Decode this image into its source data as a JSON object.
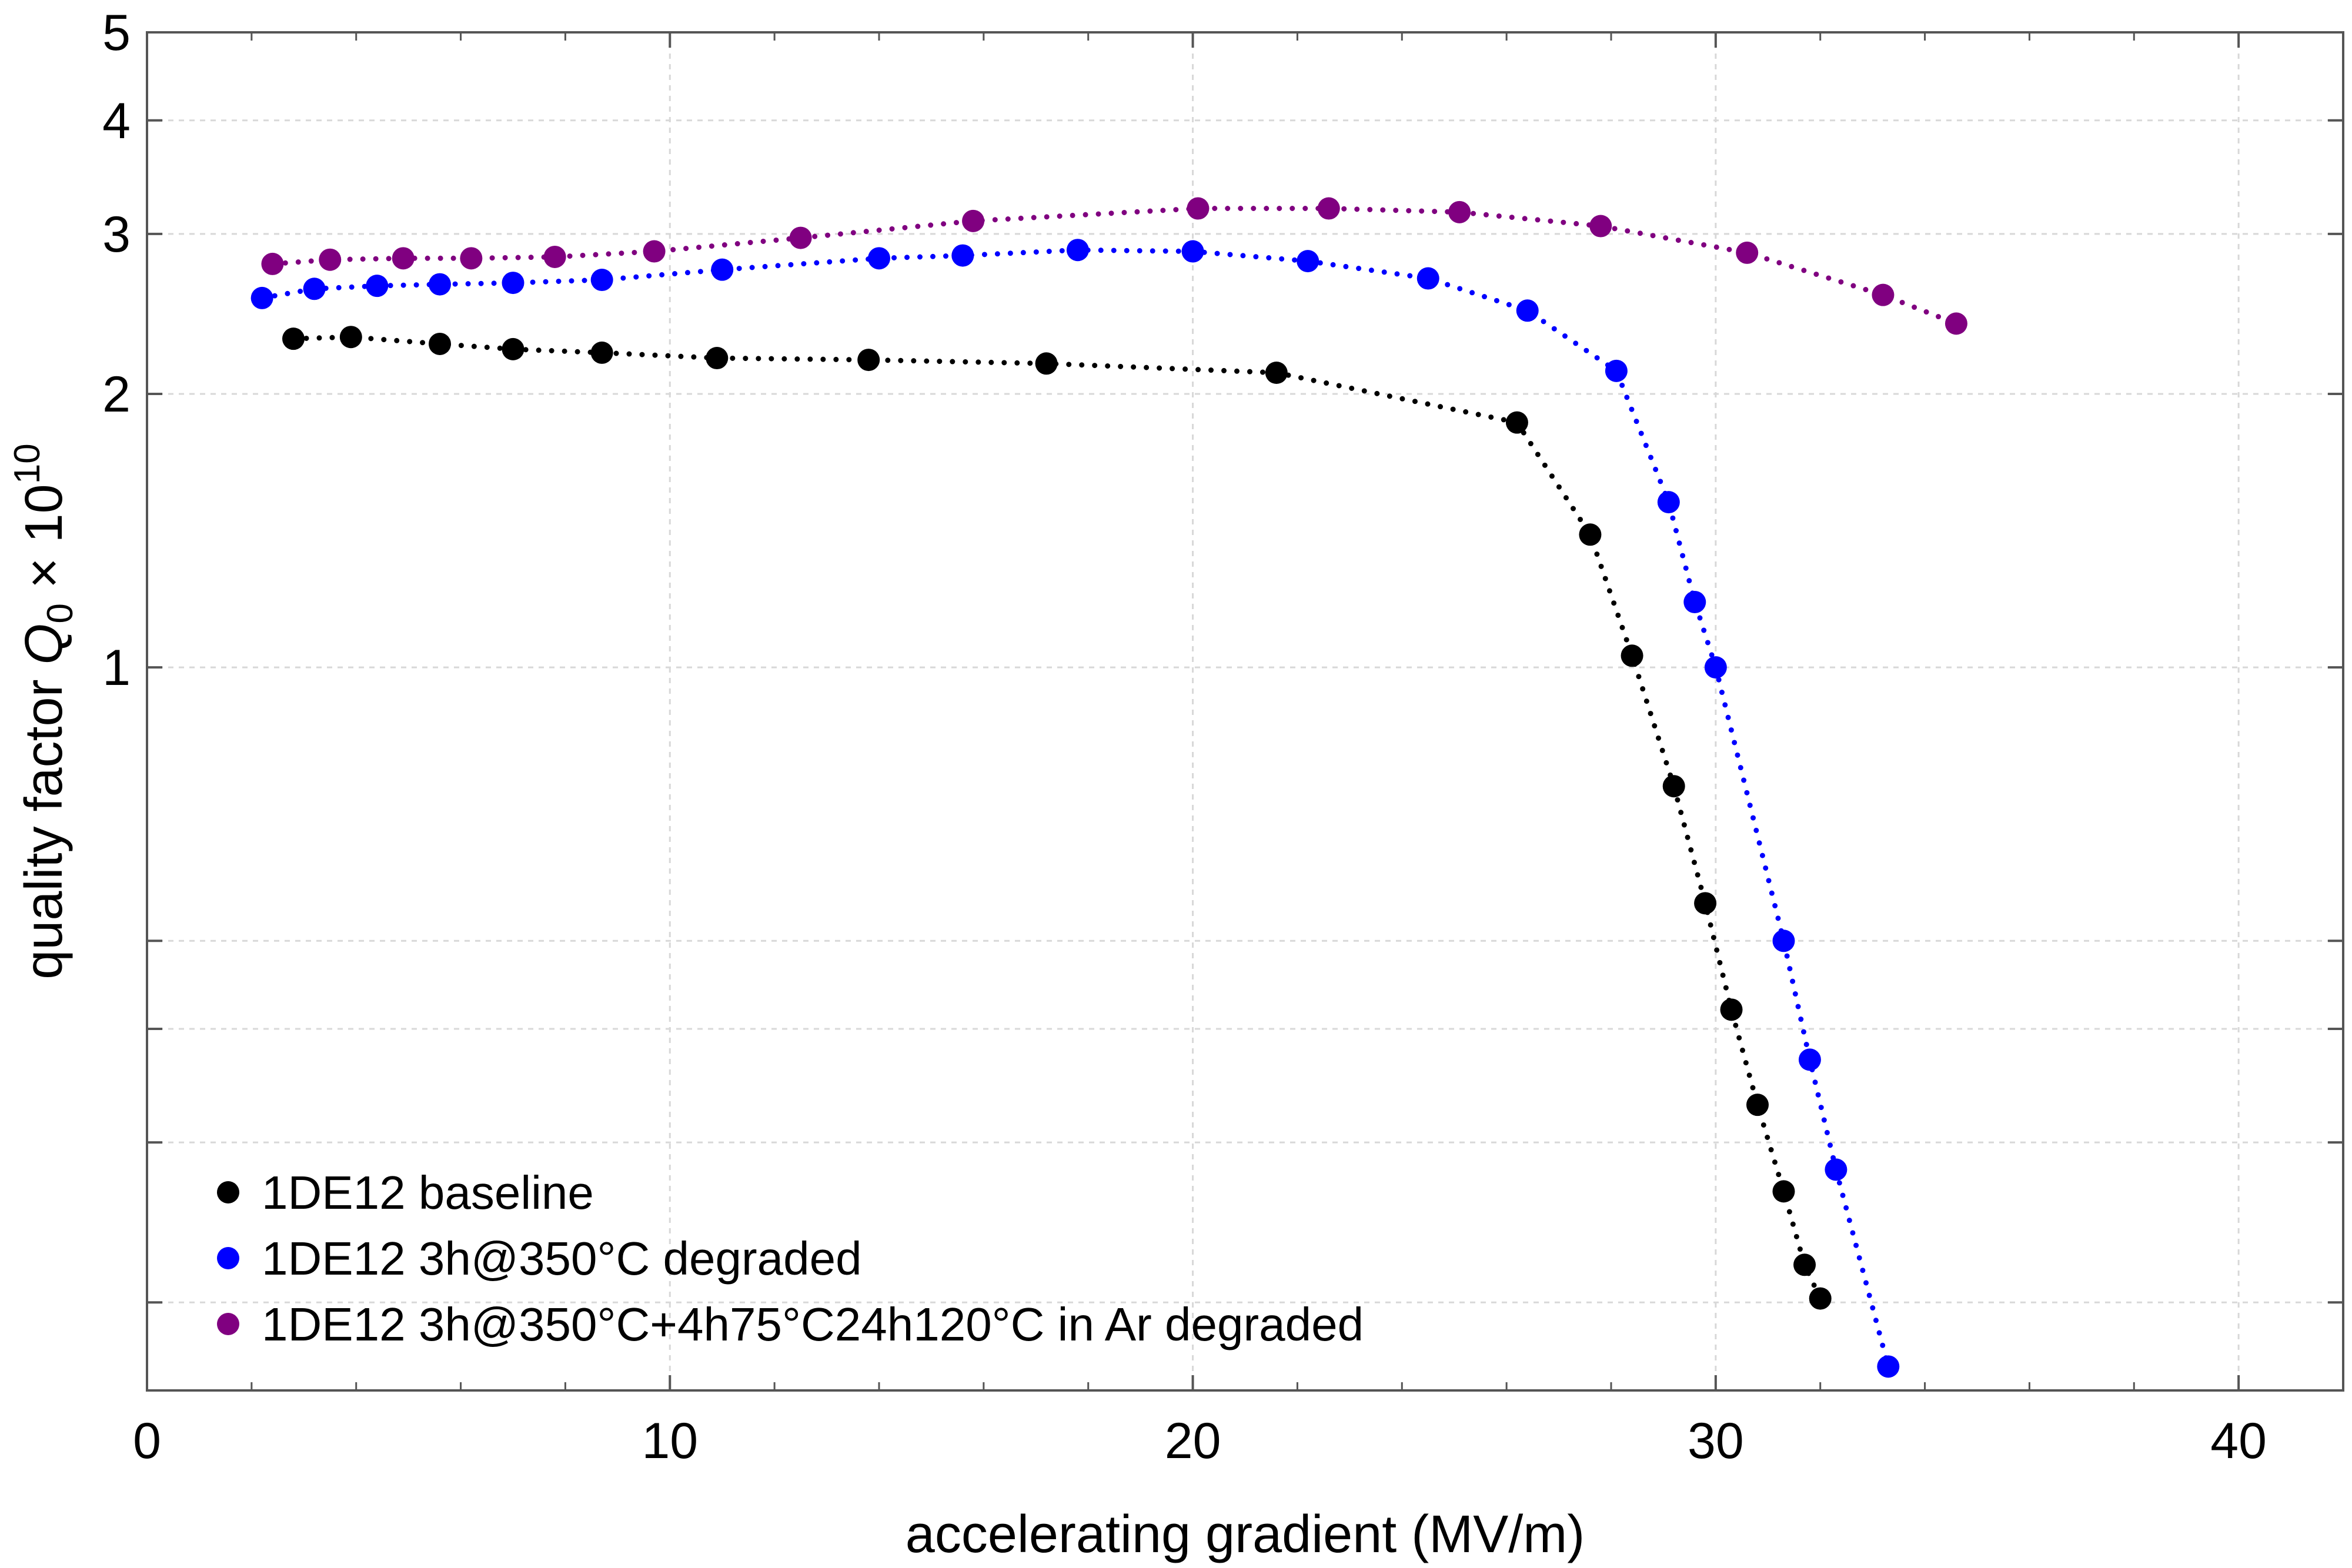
{
  "chart_data": {
    "type": "scatter",
    "title": "",
    "xlabel": "accelerating gradient (MV/m)",
    "ylabel": {
      "prefix": "quality factor ",
      "symbol": "Q",
      "subscript": "0",
      "times": " × 10",
      "exponent": "10"
    },
    "xlim": [
      0,
      42
    ],
    "ylim": [
      0.16,
      5.0
    ],
    "yscale": "log",
    "grid": true,
    "legend_position": "bottom-left",
    "x_ticks": [
      0,
      10,
      20,
      30,
      40
    ],
    "x_tick_labels": [
      "0",
      "10",
      "20",
      "30",
      "40"
    ],
    "y_ticks": [
      1,
      2,
      3,
      4,
      5
    ],
    "y_tick_labels": [
      "1",
      "2",
      "3",
      "4",
      "5"
    ],
    "series": [
      {
        "name": "1DE12 baseline",
        "color": "#000000",
        "line_style": "dotted",
        "x": [
          2.8,
          3.9,
          5.6,
          7.0,
          8.7,
          10.9,
          13.8,
          17.2,
          21.6,
          26.2,
          27.6,
          28.4,
          29.2,
          29.8,
          30.3,
          30.8,
          31.3,
          31.7,
          32.0
        ],
        "y": [
          2.3,
          2.31,
          2.27,
          2.24,
          2.22,
          2.19,
          2.18,
          2.16,
          2.11,
          1.86,
          1.4,
          1.03,
          0.74,
          0.55,
          0.42,
          0.33,
          0.265,
          0.22,
          0.202
        ]
      },
      {
        "name": "1DE12 3h@350°C degraded",
        "color": "#0000ff",
        "line_style": "dotted",
        "x": [
          2.2,
          3.2,
          4.4,
          5.6,
          7.0,
          8.7,
          11.0,
          14.0,
          15.6,
          17.8,
          20.0,
          22.2,
          24.5,
          26.4,
          28.1,
          29.1,
          29.6,
          30.0,
          31.3,
          31.8,
          32.3,
          33.3
        ],
        "y": [
          2.55,
          2.61,
          2.63,
          2.64,
          2.65,
          2.67,
          2.74,
          2.82,
          2.84,
          2.88,
          2.87,
          2.8,
          2.68,
          2.47,
          2.12,
          1.52,
          1.18,
          1.0,
          0.5,
          0.37,
          0.28,
          0.17
        ]
      },
      {
        "name": "1DE12 3h@350°C+4h75°C24h120°C in Ar degraded",
        "color": "#800080",
        "line_style": "dotted",
        "x": [
          2.4,
          3.5,
          4.9,
          6.2,
          7.8,
          9.7,
          12.5,
          15.8,
          20.1,
          22.6,
          25.1,
          27.8,
          30.6,
          33.2,
          34.6
        ],
        "y": [
          2.78,
          2.81,
          2.82,
          2.82,
          2.83,
          2.87,
          2.97,
          3.1,
          3.2,
          3.2,
          3.17,
          3.06,
          2.86,
          2.57,
          2.39
        ]
      }
    ]
  }
}
